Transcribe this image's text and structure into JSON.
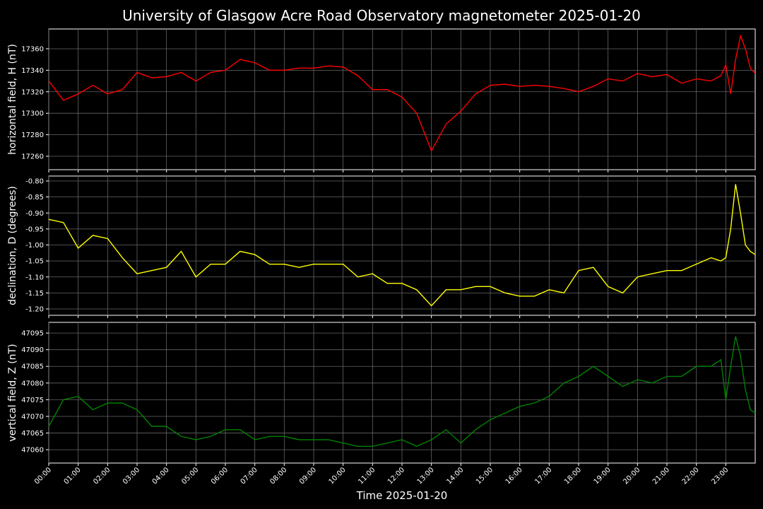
{
  "chart_data": {
    "type": "line",
    "title": "University of Glasgow Acre Road Observatory magnetometer 2025-01-20",
    "xlabel": "Time 2025-01-20",
    "grid": true,
    "x": [
      0,
      30,
      60,
      90,
      120,
      150,
      180,
      210,
      240,
      270,
      300,
      330,
      360,
      390,
      420,
      450,
      480,
      510,
      540,
      570,
      600,
      630,
      660,
      690,
      720,
      750,
      780,
      810,
      840,
      870,
      900,
      930,
      960,
      990,
      1020,
      1050,
      1080,
      1110,
      1140,
      1170,
      1200,
      1230,
      1260,
      1290,
      1320,
      1350,
      1370,
      1380,
      1390,
      1400,
      1410,
      1420,
      1430,
      1440
    ],
    "xlim": [
      0,
      1440
    ],
    "xticks": [
      {
        "value": 0,
        "label": "00:00"
      },
      {
        "value": 60,
        "label": "01:00"
      },
      {
        "value": 120,
        "label": "02:00"
      },
      {
        "value": 180,
        "label": "03:00"
      },
      {
        "value": 240,
        "label": "04:00"
      },
      {
        "value": 300,
        "label": "05:00"
      },
      {
        "value": 360,
        "label": "06:00"
      },
      {
        "value": 420,
        "label": "07:00"
      },
      {
        "value": 480,
        "label": "08:00"
      },
      {
        "value": 540,
        "label": "09:00"
      },
      {
        "value": 600,
        "label": "10:00"
      },
      {
        "value": 660,
        "label": "11:00"
      },
      {
        "value": 720,
        "label": "12:00"
      },
      {
        "value": 780,
        "label": "13:00"
      },
      {
        "value": 840,
        "label": "14:00"
      },
      {
        "value": 900,
        "label": "15:00"
      },
      {
        "value": 960,
        "label": "16:00"
      },
      {
        "value": 1020,
        "label": "17:00"
      },
      {
        "value": 1080,
        "label": "18:00"
      },
      {
        "value": 1140,
        "label": "19:00"
      },
      {
        "value": 1200,
        "label": "20:00"
      },
      {
        "value": 1260,
        "label": "21:00"
      },
      {
        "value": 1320,
        "label": "22:00"
      },
      {
        "value": 1380,
        "label": "23:00"
      }
    ],
    "panels": [
      {
        "ylabel": "horizontal field, H (nT)",
        "color": "#ff0000",
        "ylim": [
          17247.5,
          17378.4
        ],
        "yticks": [
          17260,
          17280,
          17300,
          17320,
          17340,
          17360
        ],
        "values": [
          17330,
          17312,
          17318,
          17326,
          17318,
          17322,
          17338,
          17333,
          17334,
          17338,
          17330,
          17338,
          17340,
          17350,
          17347,
          17340,
          17340,
          17342,
          17342,
          17344,
          17343,
          17335,
          17322,
          17322,
          17315,
          17300,
          17265,
          17290,
          17302,
          17318,
          17326,
          17327,
          17325,
          17326,
          17325,
          17323,
          17320,
          17325,
          17332,
          17330,
          17337,
          17334,
          17336,
          17328,
          17332,
          17330,
          17335,
          17345,
          17318,
          17350,
          17372,
          17360,
          17342,
          17337
        ]
      },
      {
        "ylabel": "declination, D (degrees)",
        "color": "#ffff00",
        "ylim": [
          -1.2199,
          -0.7845
        ],
        "yticks": [
          {
            "value": -1.2,
            "label": "-1.20"
          },
          {
            "value": -1.15,
            "label": "-1.15"
          },
          {
            "value": -1.1,
            "label": "-1.10"
          },
          {
            "value": -1.05,
            "label": "-1.05"
          },
          {
            "value": -1.0,
            "label": "-1.00"
          },
          {
            "value": -0.95,
            "label": "-0.95"
          },
          {
            "value": -0.9,
            "label": "-0.90"
          },
          {
            "value": -0.85,
            "label": "-0.85"
          },
          {
            "value": -0.8,
            "label": "-0.80"
          }
        ],
        "values": [
          -0.92,
          -0.93,
          -1.01,
          -0.97,
          -0.98,
          -1.04,
          -1.09,
          -1.08,
          -1.07,
          -1.02,
          -1.1,
          -1.06,
          -1.06,
          -1.02,
          -1.03,
          -1.06,
          -1.06,
          -1.07,
          -1.06,
          -1.06,
          -1.06,
          -1.1,
          -1.09,
          -1.12,
          -1.12,
          -1.14,
          -1.19,
          -1.14,
          -1.14,
          -1.13,
          -1.13,
          -1.15,
          -1.16,
          -1.16,
          -1.14,
          -1.15,
          -1.08,
          -1.07,
          -1.13,
          -1.15,
          -1.1,
          -1.09,
          -1.08,
          -1.08,
          -1.06,
          -1.04,
          -1.05,
          -1.04,
          -0.95,
          -0.81,
          -0.9,
          -1.0,
          -1.02,
          -1.03
        ]
      },
      {
        "ylabel": "vertical field, Z (nT)",
        "color": "#008000",
        "ylim": [
          47056.0,
          47098.2
        ],
        "yticks": [
          47060,
          47065,
          47070,
          47075,
          47080,
          47085,
          47090,
          47095
        ],
        "values": [
          47067,
          47075,
          47076,
          47072,
          47074,
          47074,
          47072,
          47067,
          47067,
          47064,
          47063,
          47064,
          47066,
          47066,
          47063,
          47064,
          47064,
          47063,
          47063,
          47063,
          47062,
          47061,
          47061,
          47062,
          47063,
          47061,
          47063,
          47066,
          47062,
          47066,
          47069,
          47071,
          47073,
          47074,
          47076,
          47080,
          47082,
          47085,
          47082,
          47079,
          47081,
          47080,
          47082,
          47082,
          47085,
          47085,
          47087,
          47075,
          47085,
          47094,
          47088,
          47078,
          47072,
          47071
        ]
      }
    ]
  }
}
